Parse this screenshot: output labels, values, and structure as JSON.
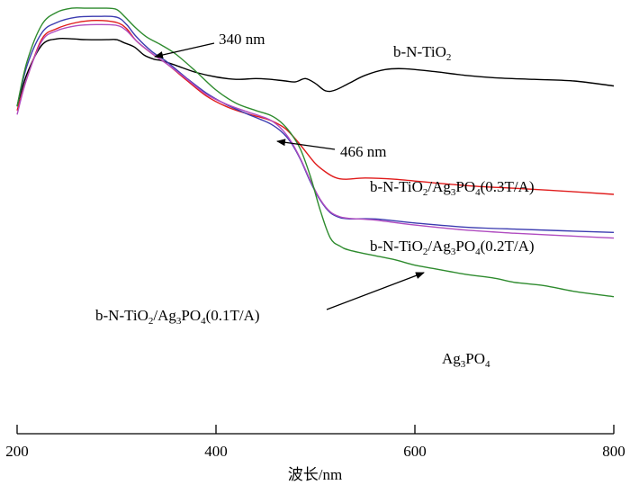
{
  "chart_data": {
    "type": "line",
    "xlabel": "波长/nm",
    "ylabel": "",
    "xlim": [
      200,
      800
    ],
    "x_ticks": [
      "200",
      "400",
      "600",
      "800"
    ],
    "grid": false,
    "series": [
      {
        "key": "b-N-TiO2",
        "color": "#000000",
        "points": [
          [
            200,
            0.8
          ],
          [
            210,
            0.88
          ],
          [
            225,
            0.95
          ],
          [
            240,
            0.965
          ],
          [
            255,
            0.965
          ],
          [
            270,
            0.963
          ],
          [
            290,
            0.963
          ],
          [
            300,
            0.963
          ],
          [
            308,
            0.955
          ],
          [
            318,
            0.945
          ],
          [
            328,
            0.925
          ],
          [
            338,
            0.915
          ],
          [
            345,
            0.912
          ],
          [
            360,
            0.9
          ],
          [
            380,
            0.883
          ],
          [
            400,
            0.872
          ],
          [
            420,
            0.866
          ],
          [
            440,
            0.868
          ],
          [
            455,
            0.866
          ],
          [
            470,
            0.862
          ],
          [
            480,
            0.86
          ],
          [
            490,
            0.868
          ],
          [
            500,
            0.856
          ],
          [
            510,
            0.838
          ],
          [
            520,
            0.84
          ],
          [
            535,
            0.858
          ],
          [
            550,
            0.876
          ],
          [
            570,
            0.89
          ],
          [
            590,
            0.892
          ],
          [
            620,
            0.885
          ],
          [
            650,
            0.876
          ],
          [
            680,
            0.87
          ],
          [
            720,
            0.866
          ],
          [
            760,
            0.862
          ],
          [
            800,
            0.85
          ]
        ]
      },
      {
        "key": "b-N-TiO2/Ag3PO4(0.3T/A)",
        "color": "#e01b1b",
        "points": [
          [
            200,
            0.79
          ],
          [
            210,
            0.87
          ],
          [
            225,
            0.965
          ],
          [
            240,
            0.99
          ],
          [
            260,
            1.005
          ],
          [
            280,
            1.01
          ],
          [
            300,
            1.005
          ],
          [
            310,
            0.99
          ],
          [
            320,
            0.96
          ],
          [
            335,
            0.93
          ],
          [
            350,
            0.905
          ],
          [
            370,
            0.865
          ],
          [
            390,
            0.826
          ],
          [
            410,
            0.8
          ],
          [
            430,
            0.783
          ],
          [
            450,
            0.77
          ],
          [
            460,
            0.76
          ],
          [
            470,
            0.745
          ],
          [
            480,
            0.72
          ],
          [
            490,
            0.69
          ],
          [
            500,
            0.66
          ],
          [
            510,
            0.64
          ],
          [
            520,
            0.626
          ],
          [
            530,
            0.622
          ],
          [
            550,
            0.625
          ],
          [
            580,
            0.622
          ],
          [
            620,
            0.613
          ],
          [
            660,
            0.605
          ],
          [
            700,
            0.6
          ],
          [
            750,
            0.593
          ],
          [
            800,
            0.585
          ]
        ]
      },
      {
        "key": "b-N-TiO2/Ag3PO4(0.2T/A)",
        "color": "#3b3bb0",
        "points": [
          [
            200,
            0.8
          ],
          [
            210,
            0.9
          ],
          [
            225,
            0.98
          ],
          [
            240,
            1.005
          ],
          [
            260,
            1.018
          ],
          [
            280,
            1.02
          ],
          [
            300,
            1.018
          ],
          [
            310,
            1.0
          ],
          [
            320,
            0.97
          ],
          [
            335,
            0.935
          ],
          [
            350,
            0.91
          ],
          [
            370,
            0.87
          ],
          [
            390,
            0.833
          ],
          [
            410,
            0.805
          ],
          [
            430,
            0.783
          ],
          [
            445,
            0.768
          ],
          [
            455,
            0.757
          ],
          [
            465,
            0.74
          ],
          [
            475,
            0.713
          ],
          [
            485,
            0.67
          ],
          [
            495,
            0.615
          ],
          [
            505,
            0.57
          ],
          [
            515,
            0.54
          ],
          [
            525,
            0.528
          ],
          [
            535,
            0.525
          ],
          [
            560,
            0.525
          ],
          [
            600,
            0.515
          ],
          [
            650,
            0.505
          ],
          [
            700,
            0.5
          ],
          [
            750,
            0.496
          ],
          [
            800,
            0.492
          ]
        ]
      },
      {
        "key": "b-N-TiO2/Ag3PO4(0.1T/A)",
        "color": "#b04cc0",
        "points": [
          [
            200,
            0.78
          ],
          [
            210,
            0.87
          ],
          [
            225,
            0.96
          ],
          [
            240,
            0.985
          ],
          [
            260,
            0.997
          ],
          [
            280,
            1.0
          ],
          [
            300,
            0.998
          ],
          [
            310,
            0.985
          ],
          [
            320,
            0.96
          ],
          [
            335,
            0.93
          ],
          [
            350,
            0.905
          ],
          [
            370,
            0.868
          ],
          [
            390,
            0.83
          ],
          [
            410,
            0.806
          ],
          [
            430,
            0.788
          ],
          [
            445,
            0.776
          ],
          [
            455,
            0.766
          ],
          [
            465,
            0.747
          ],
          [
            475,
            0.716
          ],
          [
            485,
            0.672
          ],
          [
            495,
            0.618
          ],
          [
            505,
            0.572
          ],
          [
            515,
            0.542
          ],
          [
            525,
            0.53
          ],
          [
            535,
            0.526
          ],
          [
            560,
            0.522
          ],
          [
            600,
            0.51
          ],
          [
            650,
            0.498
          ],
          [
            700,
            0.49
          ],
          [
            750,
            0.484
          ],
          [
            800,
            0.478
          ]
        ]
      },
      {
        "key": "Ag3PO4",
        "color": "#2e8b2e",
        "points": [
          [
            200,
            0.8
          ],
          [
            210,
            0.91
          ],
          [
            225,
            1.0
          ],
          [
            240,
            1.03
          ],
          [
            255,
            1.04
          ],
          [
            270,
            1.04
          ],
          [
            290,
            1.04
          ],
          [
            300,
            1.037
          ],
          [
            308,
            1.02
          ],
          [
            318,
            0.995
          ],
          [
            330,
            0.97
          ],
          [
            345,
            0.95
          ],
          [
            360,
            0.927
          ],
          [
            380,
            0.885
          ],
          [
            400,
            0.84
          ],
          [
            420,
            0.808
          ],
          [
            440,
            0.79
          ],
          [
            455,
            0.778
          ],
          [
            465,
            0.762
          ],
          [
            475,
            0.735
          ],
          [
            485,
            0.695
          ],
          [
            495,
            0.628
          ],
          [
            505,
            0.545
          ],
          [
            515,
            0.478
          ],
          [
            525,
            0.458
          ],
          [
            535,
            0.448
          ],
          [
            560,
            0.435
          ],
          [
            580,
            0.425
          ],
          [
            600,
            0.412
          ],
          [
            620,
            0.403
          ],
          [
            650,
            0.39
          ],
          [
            680,
            0.38
          ],
          [
            700,
            0.37
          ],
          [
            730,
            0.362
          ],
          [
            760,
            0.348
          ],
          [
            800,
            0.335
          ]
        ]
      }
    ],
    "annotations": {
      "peak340": "340 nm",
      "peak466": "466 nm"
    },
    "labels": {
      "tio2_base": "b-N-TiO",
      "tio2_sub": "2",
      "l03_a": "b-N-TiO",
      "l03_b": "2",
      "l03_c": "/Ag",
      "l03_d": "3",
      "l03_e": "PO",
      "l03_f": "4",
      "l03_g": "(0.3T/A)",
      "l02_a": "b-N-TiO",
      "l02_b": "2",
      "l02_c": "/Ag",
      "l02_d": "3",
      "l02_e": "PO",
      "l02_f": "4",
      "l02_g": "(0.2T/A)",
      "l01_a": "b-N-TiO",
      "l01_b": "2",
      "l01_c": "/Ag",
      "l01_d": "3",
      "l01_e": "PO",
      "l01_f": "4",
      "l01_g": "(0.1T/A)",
      "ag_a": "Ag",
      "ag_b": "3",
      "ag_c": "PO",
      "ag_d": "4"
    }
  }
}
